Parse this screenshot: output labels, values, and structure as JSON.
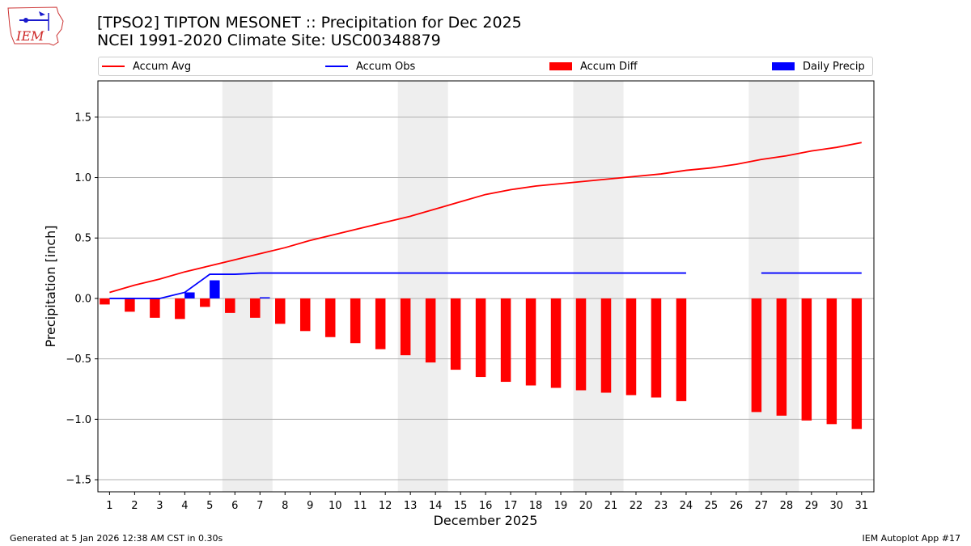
{
  "header": {
    "title_line1": "[TPSO2] TIPTON MESONET :: Precipitation for Dec 2025",
    "title_line2": "NCEI 1991-2020 Climate Site: USC00348879"
  },
  "logo": {
    "text": "IEM"
  },
  "footer": {
    "left": "Generated at 5 Jan 2026 12:38 AM CST in 0.30s",
    "right": "IEM Autoplot App #17"
  },
  "colors": {
    "avg": "#ff0000",
    "obs": "#0000ff",
    "diff": "#ff0000",
    "daily": "#0000ff",
    "weekend": "#eeeeee",
    "grid": "#b0b0b0"
  },
  "chart_data": {
    "type": "bar",
    "xlabel": "December 2025",
    "ylabel": "Precipitation [inch]",
    "ylim": [
      -1.6,
      1.8
    ],
    "yticks": [
      -1.5,
      -1.0,
      -0.5,
      0.0,
      0.5,
      1.0,
      1.5
    ],
    "ytick_labels": [
      "−1.5",
      "−1.0",
      "−0.5",
      "0.0",
      "0.5",
      "1.0",
      "1.5"
    ],
    "grid": true,
    "legend_position": "top",
    "days": [
      1,
      2,
      3,
      4,
      5,
      6,
      7,
      8,
      9,
      10,
      11,
      12,
      13,
      14,
      15,
      16,
      17,
      18,
      19,
      20,
      21,
      22,
      23,
      24,
      25,
      26,
      27,
      28,
      29,
      30,
      31
    ],
    "shaded_day_ranges": [
      [
        6,
        7
      ],
      [
        13,
        14
      ],
      [
        20,
        21
      ],
      [
        27,
        28
      ]
    ],
    "series": [
      {
        "name": "Accum Avg",
        "kind": "line",
        "values": [
          0.05,
          0.11,
          0.16,
          0.22,
          0.27,
          0.32,
          0.37,
          0.42,
          0.48,
          0.53,
          0.58,
          0.63,
          0.68,
          0.74,
          0.8,
          0.86,
          0.9,
          0.93,
          0.95,
          0.97,
          0.99,
          1.01,
          1.03,
          1.06,
          1.08,
          1.11,
          1.15,
          1.18,
          1.22,
          1.25,
          1.29
        ]
      },
      {
        "name": "Accum Obs",
        "kind": "line",
        "values": [
          0.0,
          0.0,
          0.0,
          0.05,
          0.2,
          0.2,
          0.21,
          0.21,
          0.21,
          0.21,
          0.21,
          0.21,
          0.21,
          0.21,
          0.21,
          0.21,
          0.21,
          0.21,
          0.21,
          0.21,
          0.21,
          0.21,
          0.21,
          0.21,
          null,
          null,
          0.21,
          0.21,
          0.21,
          0.21,
          0.21
        ]
      },
      {
        "name": "Accum Diff",
        "kind": "bar",
        "values": [
          -0.05,
          -0.11,
          -0.16,
          -0.17,
          -0.07,
          -0.12,
          -0.16,
          -0.21,
          -0.27,
          -0.32,
          -0.37,
          -0.42,
          -0.47,
          -0.53,
          -0.59,
          -0.65,
          -0.69,
          -0.72,
          -0.74,
          -0.76,
          -0.78,
          -0.8,
          -0.82,
          -0.85,
          null,
          null,
          -0.94,
          -0.97,
          -1.01,
          -1.04,
          -1.08
        ]
      },
      {
        "name": "Daily Precip",
        "kind": "bar",
        "values": [
          0,
          0,
          0,
          0.05,
          0.15,
          0,
          0.01,
          0,
          0,
          0,
          0,
          0,
          0,
          0,
          0,
          0,
          0,
          0,
          0,
          0,
          0,
          0,
          0,
          0,
          null,
          null,
          0,
          0,
          0,
          0,
          0
        ]
      }
    ]
  }
}
